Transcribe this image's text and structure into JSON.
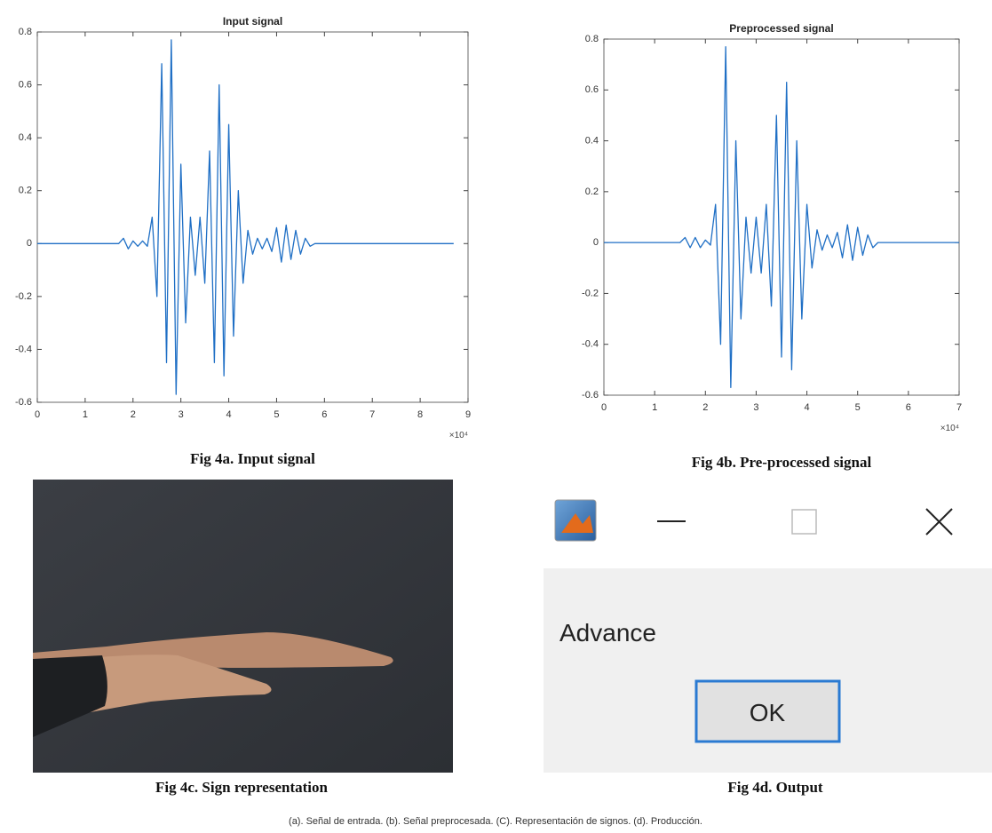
{
  "chart_data": [
    {
      "type": "line",
      "title": "Input signal",
      "caption": "Fig 4a. Input signal",
      "x_multiplier": "×10⁴",
      "x": [
        0,
        0.1,
        0.2,
        0.3,
        0.4,
        0.5,
        0.6,
        0.7,
        0.8,
        0.9,
        1,
        1.1,
        1.2,
        1.3,
        1.4,
        1.5,
        1.6,
        1.7,
        1.8,
        1.9,
        2,
        2.1,
        2.2,
        2.3,
        2.4,
        2.5,
        2.6,
        2.7,
        2.8,
        2.9,
        3,
        3.1,
        3.2,
        3.3,
        3.4,
        3.5,
        3.6,
        3.7,
        3.8,
        3.9,
        4,
        4.1,
        4.2,
        4.3,
        4.4,
        4.5,
        4.6,
        4.7,
        4.8,
        4.9,
        5,
        5.1,
        5.2,
        5.3,
        5.4,
        5.5,
        5.6,
        5.7,
        5.8,
        5.9,
        6,
        6.1,
        6.2,
        6.3,
        6.4,
        6.5,
        6.6,
        6.7,
        6.8,
        6.9,
        7,
        7.1,
        7.2,
        7.3,
        7.4,
        7.5,
        7.6,
        7.7,
        7.8,
        7.9,
        8,
        8.1,
        8.2,
        8.3,
        8.4,
        8.5,
        8.6,
        8.7
      ],
      "series": [
        {
          "color": "#1f6fc5",
          "values": [
            0,
            0,
            0,
            0,
            0,
            0,
            0,
            0,
            0,
            0,
            0,
            0,
            0,
            0,
            0,
            0,
            0,
            0,
            0.02,
            -0.02,
            0.01,
            -0.01,
            0.01,
            -0.01,
            0.1,
            -0.2,
            0.68,
            -0.45,
            0.77,
            -0.57,
            0.3,
            -0.3,
            0.1,
            -0.12,
            0.1,
            -0.15,
            0.35,
            -0.45,
            0.6,
            -0.5,
            0.45,
            -0.35,
            0.2,
            -0.15,
            0.05,
            -0.04,
            0.02,
            -0.02,
            0.02,
            -0.03,
            0.06,
            -0.07,
            0.07,
            -0.06,
            0.05,
            -0.04,
            0.02,
            -0.01,
            0,
            0,
            0,
            0,
            0,
            0,
            0,
            0,
            0,
            0,
            0,
            0,
            0,
            0,
            0,
            0,
            0,
            0,
            0,
            0,
            0,
            0,
            0,
            0,
            0,
            0,
            0,
            0,
            0,
            0
          ]
        }
      ],
      "xlim": [
        0,
        9
      ],
      "xticks": [
        0,
        1,
        2,
        3,
        4,
        5,
        6,
        7,
        8,
        9
      ],
      "ylim": [
        -0.6,
        0.8
      ],
      "yticks": [
        -0.6,
        -0.4,
        -0.2,
        0,
        0.2,
        0.4,
        0.6,
        0.8
      ]
    },
    {
      "type": "line",
      "title": "Preprocessed signal",
      "caption": "Fig 4b. Pre-processed signal",
      "x_multiplier": "×10⁴",
      "x": [
        0,
        0.1,
        0.2,
        0.3,
        0.4,
        0.5,
        0.6,
        0.7,
        0.8,
        0.9,
        1,
        1.1,
        1.2,
        1.3,
        1.4,
        1.5,
        1.6,
        1.7,
        1.8,
        1.9,
        2,
        2.1,
        2.2,
        2.3,
        2.4,
        2.5,
        2.6,
        2.7,
        2.8,
        2.9,
        3,
        3.1,
        3.2,
        3.3,
        3.4,
        3.5,
        3.6,
        3.7,
        3.8,
        3.9,
        4,
        4.1,
        4.2,
        4.3,
        4.4,
        4.5,
        4.6,
        4.7,
        4.8,
        4.9,
        5,
        5.1,
        5.2,
        5.3,
        5.4,
        5.5,
        5.6,
        5.7,
        5.8,
        5.9,
        6,
        6.1,
        6.2,
        6.3,
        6.4,
        6.5,
        6.6,
        6.7,
        6.8,
        6.9,
        7
      ],
      "series": [
        {
          "color": "#1f6fc5",
          "values": [
            0,
            0,
            0,
            0,
            0,
            0,
            0,
            0,
            0,
            0,
            0,
            0,
            0,
            0,
            0,
            0,
            0.02,
            -0.02,
            0.02,
            -0.02,
            0.01,
            -0.01,
            0.15,
            -0.4,
            0.77,
            -0.57,
            0.4,
            -0.3,
            0.1,
            -0.12,
            0.1,
            -0.12,
            0.15,
            -0.25,
            0.5,
            -0.45,
            0.63,
            -0.5,
            0.4,
            -0.3,
            0.15,
            -0.1,
            0.05,
            -0.03,
            0.03,
            -0.02,
            0.04,
            -0.06,
            0.07,
            -0.07,
            0.06,
            -0.05,
            0.03,
            -0.02,
            0,
            0,
            0,
            0,
            0,
            0,
            0,
            0,
            0,
            0,
            0,
            0,
            0,
            0,
            0,
            0,
            0
          ]
        }
      ],
      "xlim": [
        0,
        7
      ],
      "xticks": [
        0,
        1,
        2,
        3,
        4,
        5,
        6,
        7
      ],
      "ylim": [
        -0.6,
        0.8
      ],
      "yticks": [
        -0.6,
        -0.4,
        -0.2,
        0,
        0.2,
        0.4,
        0.6,
        0.8
      ]
    }
  ],
  "photo": {
    "caption": "Fig 4c. Sign representation"
  },
  "dialog": {
    "message": "Advance",
    "button": "OK",
    "caption": "Fig 4d. Output"
  },
  "footer": "(a). Señal de entrada. (b). Señal preprocesada. (C). Representación de signos. (d). Producción."
}
